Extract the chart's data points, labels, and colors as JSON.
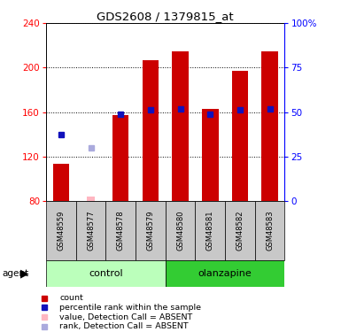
{
  "title": "GDS2608 / 1379815_at",
  "samples": [
    "GSM48559",
    "GSM48577",
    "GSM48578",
    "GSM48579",
    "GSM48580",
    "GSM48581",
    "GSM48582",
    "GSM48583"
  ],
  "red_values": [
    113,
    null,
    157,
    207,
    215,
    163,
    197,
    215
  ],
  "blue_values": [
    140,
    null,
    158,
    162,
    163,
    158,
    162,
    163
  ],
  "pink_red_values": [
    null,
    84,
    null,
    null,
    null,
    null,
    null,
    null
  ],
  "pink_blue_values": [
    null,
    128,
    null,
    null,
    null,
    null,
    null,
    null
  ],
  "ylim": [
    80,
    240
  ],
  "yticks": [
    80,
    120,
    160,
    200,
    240
  ],
  "y2ticks": [
    0,
    25,
    50,
    75,
    100
  ],
  "y2labels": [
    "0",
    "25",
    "50",
    "75",
    "100%"
  ],
  "bar_width": 0.55,
  "red_color": "#CC0000",
  "blue_color": "#1111BB",
  "pink_red_color": "#FFB6C1",
  "pink_blue_color": "#AAAADD",
  "label_bg_color": "#C8C8C8",
  "control_bg_color": "#BBFFBB",
  "olanzapine_bg_color": "#33CC33",
  "legend_entries": [
    {
      "color": "#CC0000",
      "label": "count"
    },
    {
      "color": "#1111BB",
      "label": "percentile rank within the sample"
    },
    {
      "color": "#FFB6C1",
      "label": "value, Detection Call = ABSENT"
    },
    {
      "color": "#AAAADD",
      "label": "rank, Detection Call = ABSENT"
    }
  ]
}
